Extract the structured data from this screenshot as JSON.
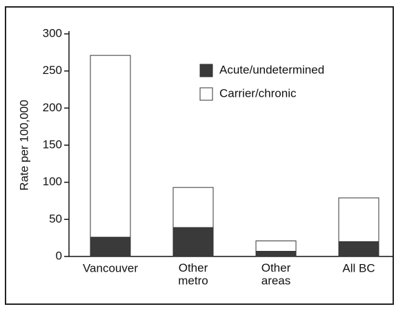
{
  "chart_data": {
    "type": "stacked_bar",
    "y_label": "Rate per 100,000",
    "categories": [
      "Vancouver",
      "Other\nmetro",
      "Other\nareas",
      "All BC"
    ],
    "series": [
      {
        "name": "Acute/undetermined",
        "color": "#3a3a3a",
        "values": [
          26,
          39,
          7,
          20
        ]
      },
      {
        "name": "Carrier/chronic",
        "color": "#ffffff",
        "values": [
          245,
          54,
          14,
          59
        ]
      }
    ],
    "ylim": [
      0,
      300
    ],
    "yticks": [
      0,
      50,
      100,
      150,
      200,
      250,
      300
    ],
    "legend": "upper right"
  }
}
